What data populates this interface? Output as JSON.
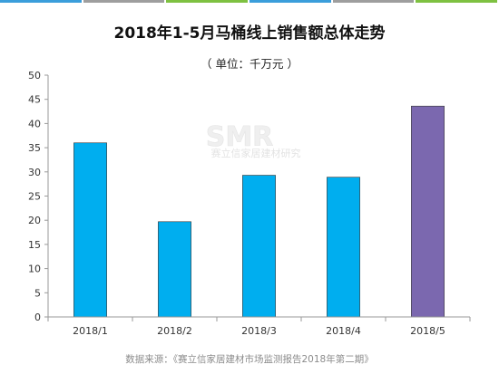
{
  "colors": {
    "bar_primary": "#00AEEF",
    "bar_highlight": "#7B68AF",
    "topbar": [
      "#3B9EDB",
      "#9E9E9E",
      "#7EC141",
      "#3B9EDB",
      "#9E9E9E",
      "#7EC141"
    ],
    "grid": "#e6e6e6",
    "axis": "#9a9a9a"
  },
  "header": {
    "title": "2018年1-5月马桶线上销售额总体走势",
    "subtitle": "（ 单位：千万元 ）"
  },
  "watermark": {
    "logo": "SMR",
    "caption": "赛立信家居建材研究"
  },
  "footer": {
    "source": "数据来源：《赛立信家居建材市场监测报告2018年第二期》"
  },
  "chart_data": {
    "type": "bar",
    "categories": [
      "2018/1",
      "2018/2",
      "2018/3",
      "2018/4",
      "2018/5"
    ],
    "values": [
      36,
      19.7,
      29.3,
      28.9,
      43.6
    ],
    "highlight_index": 4,
    "ylim": [
      0,
      50
    ],
    "yticks": [
      0,
      5,
      10,
      15,
      20,
      25,
      30,
      35,
      40,
      45,
      50
    ],
    "grid": false,
    "legend": "none"
  }
}
